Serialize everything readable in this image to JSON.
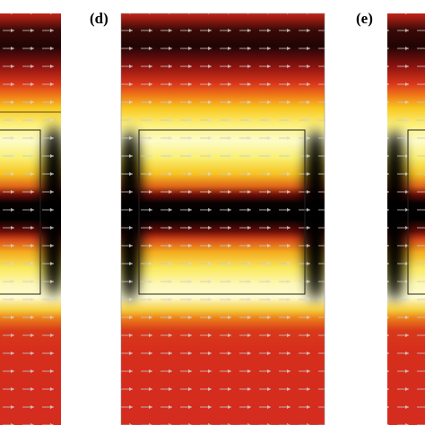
{
  "panels": [
    {
      "label": "(d)"
    },
    {
      "label": "(e)"
    }
  ]
}
